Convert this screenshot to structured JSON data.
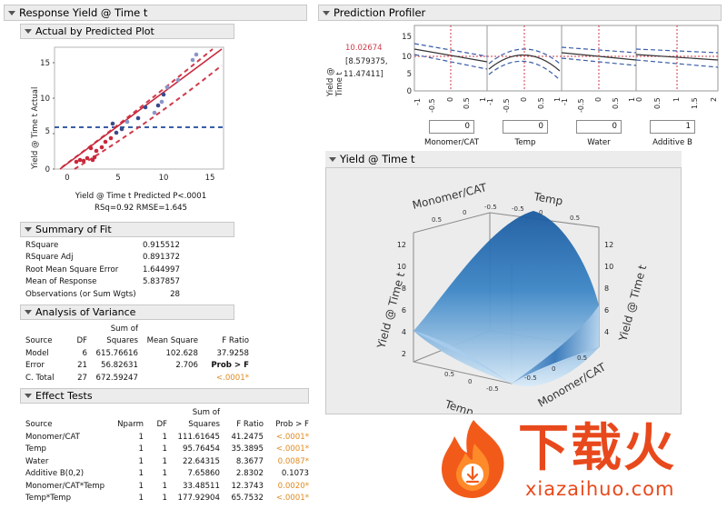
{
  "left": {
    "title": "Response Yield @ Time t",
    "avp": {
      "title": "Actual by Predicted Plot",
      "y_label": "Yield @ Time t Actual",
      "x_label": "Yield @ Time t Predicted P<.0001",
      "stats": "RSq=0.92 RMSE=1.645",
      "x_ticks": [
        "0",
        "5",
        "10",
        "15"
      ],
      "y_ticks": [
        "0",
        "5",
        "10",
        "15"
      ]
    },
    "summary_of_fit": {
      "title": "Summary of Fit",
      "rows": [
        {
          "label": "RSquare",
          "value": "0.915512"
        },
        {
          "label": "RSquare Adj",
          "value": "0.891372"
        },
        {
          "label": "Root Mean Square Error",
          "value": "1.644997"
        },
        {
          "label": "Mean of Response",
          "value": "5.837857"
        },
        {
          "label": "Observations (or Sum Wgts)",
          "value": "28"
        }
      ]
    },
    "anova": {
      "title": "Analysis of Variance",
      "head1": {
        "sumof": "Sum of"
      },
      "head2": {
        "source": "Source",
        "df": "DF",
        "squares": "Squares",
        "ms": "Mean Square",
        "fratio": "F Ratio"
      },
      "model": {
        "source": "Model",
        "df": "6",
        "ss": "615.76616",
        "ms": "102.628",
        "f": "37.9258"
      },
      "error": {
        "source": "Error",
        "df": "21",
        "ss": "56.82631",
        "ms": "2.706",
        "f": "Prob > F"
      },
      "total": {
        "source": "C. Total",
        "df": "27",
        "ss": "672.59247",
        "p": "<.0001*"
      }
    },
    "effects": {
      "title": "Effect Tests",
      "head1": {
        "sumof": "Sum of"
      },
      "head2": {
        "source": "Source",
        "nparm": "Nparm",
        "df": "DF",
        "squares": "Squares",
        "fratio": "F Ratio",
        "prob": "Prob > F"
      },
      "rows": [
        {
          "source": "Monomer/CAT",
          "nparm": "1",
          "df": "1",
          "ss": "111.61645",
          "f": "41.2475",
          "p": "<.0001*",
          "sig": true
        },
        {
          "source": "Temp",
          "nparm": "1",
          "df": "1",
          "ss": "95.76454",
          "f": "35.3895",
          "p": "<.0001*",
          "sig": true
        },
        {
          "source": "Water",
          "nparm": "1",
          "df": "1",
          "ss": "22.64315",
          "f": "8.3677",
          "p": "0.0087*",
          "sig": true
        },
        {
          "source": "Additive B(0,2)",
          "nparm": "1",
          "df": "1",
          "ss": "7.65860",
          "f": "2.8302",
          "p": "0.1073",
          "sig": false
        },
        {
          "source": "Monomer/CAT*Temp",
          "nparm": "1",
          "df": "1",
          "ss": "33.48511",
          "f": "12.3743",
          "p": "0.0020*",
          "sig": true
        },
        {
          "source": "Temp*Temp",
          "nparm": "1",
          "df": "1",
          "ss": "177.92904",
          "f": "65.7532",
          "p": "<.0001*",
          "sig": true
        }
      ]
    }
  },
  "profiler": {
    "title": "Prediction Profiler",
    "y_label_1": "Yield @",
    "y_label_2": "Time t",
    "pred_value": "10.02674",
    "ci_line1": "[8.579375,",
    "ci_line2": "11.47411]",
    "y_ticks": [
      "15",
      "10",
      "5",
      "0"
    ],
    "x_ticks": [
      "-1",
      "-0.5",
      "0",
      "0.5",
      "1"
    ],
    "x_ticks_additive": [
      "0",
      "0.5",
      "1",
      "1.5",
      "2"
    ],
    "factors": [
      {
        "name": "Monomer/CAT",
        "value": "0"
      },
      {
        "name": "Temp",
        "value": "0"
      },
      {
        "name": "Water",
        "value": "0"
      },
      {
        "name": "Additive B",
        "value": "1"
      }
    ]
  },
  "surface": {
    "title": "Yield @ Time t",
    "axis_monomer": "Monomer/CAT",
    "axis_temp": "Temp",
    "axis_temp_bottom": "Temp",
    "axis_monomer_bottom": "Monomer/CAT",
    "axis_yield_left": "Yield @ Time t",
    "axis_yield_right": "Yield @ Time t",
    "z_ticks": [
      "12",
      "10",
      "8",
      "6",
      "4",
      "2"
    ],
    "tick_05": "0.5",
    "tick_0": "0",
    "tick_m05": "-0.5"
  },
  "watermark": {
    "brand": "下载火",
    "url": "xiazaihuo.com"
  }
}
